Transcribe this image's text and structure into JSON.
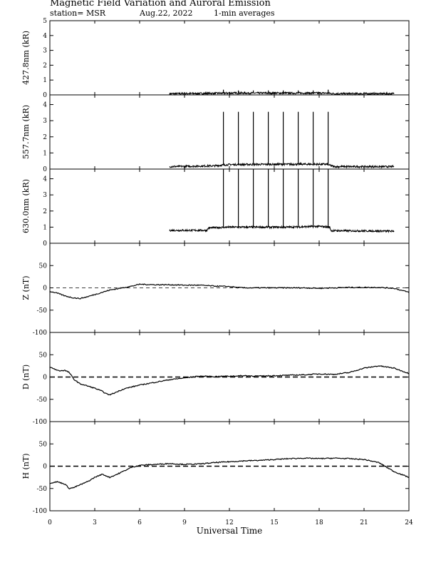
{
  "header": {
    "title": "Magnetic Field Variation and Auroral Emission",
    "station": "station= MSR",
    "date": "Aug.22, 2022",
    "averaging": "1-min averages"
  },
  "chart_data": {
    "type": "line",
    "xlabel": "Universal Time",
    "xlim": [
      0,
      24
    ],
    "xticks": [
      0,
      3,
      6,
      9,
      12,
      15,
      18,
      21,
      24
    ],
    "panels": [
      {
        "id": "p4278",
        "ylabel": "427.8nm (kR)",
        "ylim": [
          0,
          5
        ],
        "yticks": [
          0,
          1,
          2,
          3,
          4,
          5
        ],
        "baseline_range": [
          8.0,
          23.0
        ],
        "baseline_level": [
          [
            8.0,
            0.08
          ],
          [
            10.5,
            0.1
          ],
          [
            12.0,
            0.12
          ],
          [
            16.0,
            0.12
          ],
          [
            18.5,
            0.12
          ],
          [
            19.0,
            0.08
          ],
          [
            23.0,
            0.08
          ]
        ],
        "spikes": {
          "times": [
            11.6,
            12.6,
            13.6,
            14.6,
            15.6,
            16.6,
            17.6,
            18.6
          ],
          "values": [
            0.35,
            0.3,
            0.3,
            0.3,
            0.3,
            0.3,
            0.3,
            0.35
          ]
        }
      },
      {
        "id": "p5577",
        "ylabel": "557.7nm (kR)",
        "ylim": [
          0,
          4.6
        ],
        "yticks": [
          0,
          1,
          2,
          3,
          4
        ],
        "baseline_range": [
          8.0,
          23.0
        ],
        "baseline_level": [
          [
            8.0,
            0.15
          ],
          [
            11.0,
            0.2
          ],
          [
            12.0,
            0.28
          ],
          [
            16.0,
            0.3
          ],
          [
            18.5,
            0.3
          ],
          [
            19.0,
            0.15
          ],
          [
            23.0,
            0.15
          ]
        ],
        "spikes": {
          "times": [
            11.6,
            12.6,
            13.6,
            14.6,
            15.6,
            16.6,
            17.6,
            18.6
          ],
          "values": [
            3.55,
            3.55,
            3.55,
            3.55,
            3.55,
            3.55,
            3.55,
            3.55
          ]
        }
      },
      {
        "id": "p6300",
        "ylabel": "630.0nm (kR)",
        "ylim": [
          0,
          4.6
        ],
        "yticks": [
          0,
          1,
          2,
          3,
          4
        ],
        "baseline_range": [
          8.0,
          23.0
        ],
        "baseline_level": [
          [
            8.0,
            0.8
          ],
          [
            10.5,
            0.8
          ],
          [
            10.6,
            0.95
          ],
          [
            12.0,
            1.0
          ],
          [
            16.0,
            1.0
          ],
          [
            18.0,
            1.05
          ],
          [
            18.7,
            1.0
          ],
          [
            18.8,
            0.78
          ],
          [
            23.0,
            0.75
          ]
        ],
        "spikes": {
          "times": [
            11.6,
            12.6,
            13.6,
            14.6,
            15.6,
            16.6,
            17.6,
            18.6
          ],
          "values": [
            4.6,
            4.6,
            4.6,
            4.6,
            4.6,
            4.6,
            4.6,
            4.6
          ]
        }
      },
      {
        "id": "pZ",
        "ylabel": "Z (nT)",
        "ylim": [
          -100,
          100
        ],
        "yticks": [
          -100,
          -50,
          0,
          50
        ],
        "zero_line": "thin",
        "series": {
          "x": [
            0,
            0.5,
            1,
            1.5,
            2,
            2.5,
            3,
            3.5,
            4,
            5,
            5.5,
            6,
            7,
            8,
            9,
            10,
            11,
            12,
            12.5,
            13,
            14,
            15,
            16,
            17,
            18,
            19,
            20,
            21,
            22,
            23,
            24
          ],
          "y": [
            -8,
            -12,
            -18,
            -22,
            -24,
            -20,
            -15,
            -10,
            -5,
            1,
            4,
            8,
            7,
            7,
            6,
            6,
            4,
            3,
            1,
            0,
            0,
            0,
            0,
            0,
            -1,
            0,
            1,
            1,
            1,
            -1,
            -10
          ]
        }
      },
      {
        "id": "pD",
        "ylabel": "D (nT)",
        "ylim": [
          -100,
          100
        ],
        "yticks": [
          -100,
          -50,
          0,
          50
        ],
        "zero_line": "thick",
        "series": {
          "x": [
            0,
            0.3,
            0.6,
            1,
            1.3,
            1.6,
            2,
            2.5,
            3,
            3.5,
            3.8,
            4,
            4.3,
            4.7,
            5,
            6,
            7,
            8,
            9,
            10,
            11,
            12,
            13,
            14,
            15,
            16,
            17,
            18,
            19,
            20,
            21,
            22,
            23,
            24
          ],
          "y": [
            22,
            18,
            14,
            15,
            10,
            -5,
            -15,
            -20,
            -25,
            -32,
            -38,
            -40,
            -36,
            -30,
            -26,
            -18,
            -12,
            -6,
            -2,
            2,
            1,
            2,
            3,
            2,
            3,
            4,
            5,
            7,
            6,
            10,
            20,
            25,
            20,
            8
          ]
        }
      },
      {
        "id": "pH",
        "ylabel": "H (nT)",
        "ylim": [
          -100,
          100
        ],
        "yticks": [
          -100,
          -50,
          0,
          50
        ],
        "zero_line": "thick",
        "series": {
          "x": [
            0,
            0.5,
            1,
            1.3,
            1.6,
            2,
            2.5,
            3,
            3.5,
            4,
            4.5,
            5,
            5.5,
            6,
            7,
            8,
            9,
            10,
            11,
            12,
            13,
            14,
            15,
            16,
            17,
            18,
            19,
            20,
            21,
            22,
            23,
            24
          ],
          "y": [
            -38,
            -35,
            -40,
            -50,
            -48,
            -42,
            -35,
            -25,
            -18,
            -25,
            -18,
            -10,
            -2,
            2,
            4,
            6,
            4,
            5,
            8,
            10,
            12,
            13,
            15,
            17,
            18,
            17,
            18,
            17,
            15,
            8,
            -12,
            -25
          ]
        }
      }
    ]
  }
}
